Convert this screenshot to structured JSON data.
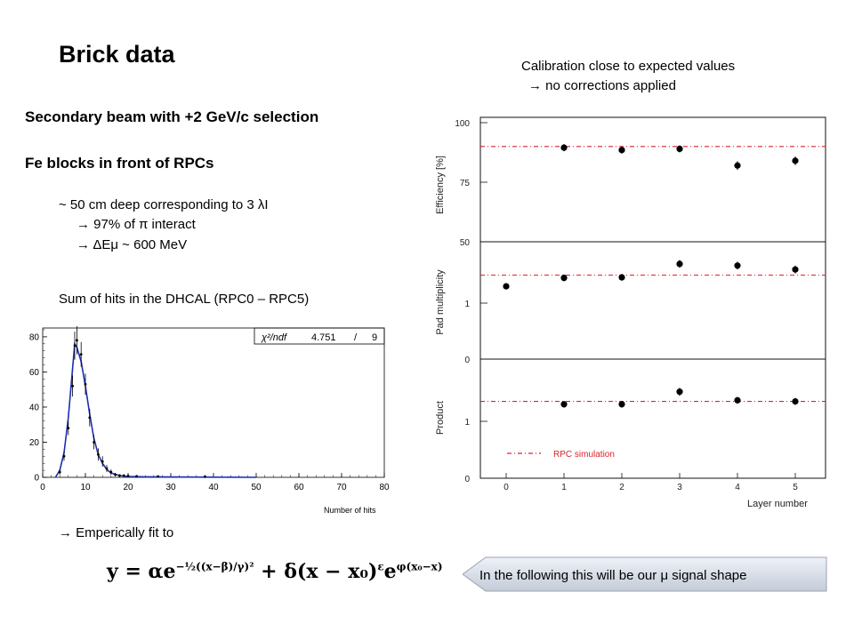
{
  "title": "Brick data",
  "left_text": {
    "secondary_beam": "Secondary beam with +2 GeV/c selection",
    "fe_blocks": "Fe blocks in front of RPCs",
    "depth": "~ 50 cm deep corresponding to 3 λI",
    "pi_interact": "→ 97% of π interact",
    "delta_e": "→ ΔEμ ~ 600 MeV",
    "sum_hits": "Sum of hits in the DHCAL (RPC0 – RPC5)",
    "fit_note": "→ Emperically fit to"
  },
  "right_text": {
    "calibration_line1": "Calibration close to expected values",
    "calibration_line2": "→ no corrections applied",
    "callout": "In the following this will be our μ signal shape"
  },
  "formula": {
    "lhs": "y = αe",
    "exp1": "−½((x−β)/γ)²",
    "mid": " + δ(x − x₀)",
    "exp2": "ε",
    "tail": "e",
    "exp3": "φ(x₀−x)"
  },
  "chart_data": [
    {
      "type": "histogram",
      "xlabel": "Number of hits",
      "xlim": [
        0,
        80
      ],
      "ylim": [
        0,
        85
      ],
      "x_ticks": [
        "0",
        "10",
        "20",
        "30",
        "40",
        "50",
        "60",
        "70",
        "80"
      ],
      "y_ticks": [
        "0",
        "20",
        "40",
        "60",
        "80"
      ],
      "stats_box": {
        "label": "χ²/ndf",
        "value": "4.751",
        "sep": "/",
        "ndf": "9"
      },
      "points": {
        "x": [
          4,
          5,
          6,
          7,
          7.5,
          8,
          9,
          10,
          11,
          12,
          13,
          14,
          15,
          16,
          17,
          18,
          19,
          20,
          22,
          27,
          38
        ],
        "y": [
          3,
          12,
          28,
          52,
          75,
          78,
          70,
          53,
          34,
          20,
          13,
          9,
          5,
          3,
          1.5,
          1,
          1,
          0.8,
          0.6,
          0.5,
          0.4
        ],
        "err": [
          1.5,
          2.5,
          4,
          6,
          8,
          8,
          7,
          6,
          5,
          4,
          3.5,
          3,
          2,
          1.5,
          1,
          0.8,
          0.7,
          0.6,
          0.5,
          0.5,
          0.5
        ]
      },
      "fit": {
        "x": [
          3,
          4,
          5,
          6,
          7,
          7.5,
          8,
          9,
          10,
          11,
          12,
          13,
          14,
          15,
          16,
          18,
          20,
          24,
          30,
          40,
          50
        ],
        "y": [
          0,
          4,
          14,
          34,
          62,
          76,
          74,
          66,
          52,
          36,
          22,
          13,
          8,
          4.5,
          2.5,
          1,
          0.5,
          0.3,
          0.2,
          0.1,
          0
        ]
      }
    },
    {
      "type": "scatter",
      "xlabel": "Layer number",
      "x": [
        0,
        1,
        2,
        3,
        4,
        5
      ],
      "x_ticks": [
        "0",
        "1",
        "2",
        "3",
        "4",
        "5"
      ],
      "legend": {
        "label": "RPC simulation"
      },
      "panels": [
        {
          "ylabel": "Efficiency [%]",
          "ylim": [
            50,
            100
          ],
          "y_ticks": [
            "100",
            "75",
            "50"
          ],
          "y_tick_values": [
            100,
            75,
            50
          ],
          "simulation": 90,
          "values": [
            null,
            89.5,
            88.5,
            89.0,
            82.0,
            84.0
          ],
          "errors": [
            null,
            1.5,
            1.5,
            1.5,
            1.8,
            1.8
          ]
        },
        {
          "ylabel": "Pad multiplicity",
          "ylim": [
            0,
            2
          ],
          "y_ticks": [
            "1",
            "0"
          ],
          "y_tick_values": [
            1,
            0
          ],
          "simulation": 1.5,
          "values": [
            1.3,
            1.45,
            1.46,
            1.7,
            1.67,
            1.6
          ],
          "errors": [
            0.05,
            0.06,
            0.06,
            0.07,
            0.07,
            0.07
          ]
        },
        {
          "ylabel": "Product",
          "ylim": [
            0,
            2
          ],
          "y_ticks": [
            "1",
            "0"
          ],
          "y_tick_values": [
            1,
            0
          ],
          "simulation": 1.35,
          "values": [
            null,
            1.3,
            1.3,
            1.52,
            1.37,
            1.35
          ],
          "errors": [
            null,
            0.06,
            0.06,
            0.07,
            0.06,
            0.06
          ]
        }
      ]
    }
  ]
}
